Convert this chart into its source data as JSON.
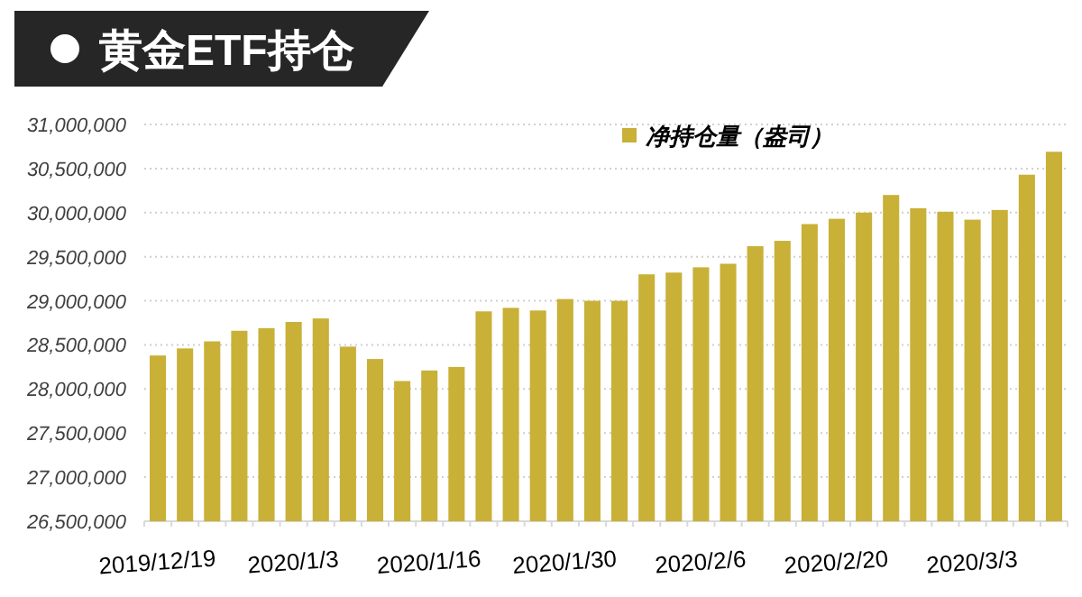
{
  "chart_data": {
    "type": "bar",
    "title": "黄金ETF持仓",
    "categories": [
      "2019/12/19",
      null,
      null,
      null,
      null,
      "2020/1/3",
      null,
      null,
      null,
      null,
      "2020/1/16",
      null,
      null,
      null,
      null,
      "2020/1/30",
      null,
      null,
      null,
      null,
      "2020/2/6",
      null,
      null,
      null,
      null,
      "2020/2/20",
      null,
      null,
      null,
      null,
      "2020/3/3",
      null,
      null,
      null
    ],
    "series": [
      {
        "name": "净持仓量（盎司）",
        "color": "#c9b037",
        "values": [
          28380000,
          28460000,
          28540000,
          28660000,
          28690000,
          28760000,
          28800000,
          28480000,
          28340000,
          28090000,
          28210000,
          28250000,
          28880000,
          28920000,
          28890000,
          29020000,
          29000000,
          29000000,
          29300000,
          29320000,
          29380000,
          29420000,
          29620000,
          29680000,
          29870000,
          29930000,
          30000000,
          30200000,
          30050000,
          30010000,
          29920000,
          30030000,
          30430000,
          30690000
        ]
      }
    ],
    "ylim": [
      26500000,
      31000000
    ],
    "yticks": [
      {
        "value": 26500000,
        "label": "26,500,000"
      },
      {
        "value": 27000000,
        "label": "27,000,000"
      },
      {
        "value": 27500000,
        "label": "27,500,000"
      },
      {
        "value": 28000000,
        "label": "28,000,000"
      },
      {
        "value": 28500000,
        "label": "28,500,000"
      },
      {
        "value": 29000000,
        "label": "29,000,000"
      },
      {
        "value": 29500000,
        "label": "29,500,000"
      },
      {
        "value": 30000000,
        "label": "30,000,000"
      },
      {
        "value": 30500000,
        "label": "30,500,000"
      },
      {
        "value": 31000000,
        "label": "31,000,000"
      }
    ],
    "grid": "y",
    "legend": "top"
  }
}
